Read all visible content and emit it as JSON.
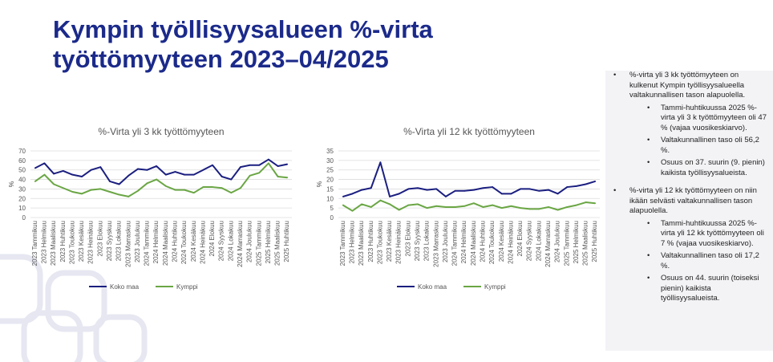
{
  "slide": {
    "title": "Kympin työllisyysalueen %-virta työttömyyteen 2023–04/2025"
  },
  "colors": {
    "title": "#1b2a8a",
    "koko_maa": "#1b1f80",
    "kymppi": "#6aa644",
    "grid": "#dcdcdc",
    "panel": "#f3f3f6"
  },
  "chart_data": [
    {
      "type": "line",
      "title": "%-Virta yli 3 kk työttömyyteen",
      "ylabel": "%",
      "ylim": [
        0,
        70
      ],
      "yticks": [
        0,
        10,
        20,
        30,
        40,
        50,
        60,
        70
      ],
      "grid": true,
      "legend": "bottom",
      "categories": [
        "2023 Tammikuu",
        "2023 Helmikuu",
        "2023 Maaliskuu",
        "2023 Huhtikuu",
        "2023 Toukokuu",
        "2023 Kesäkuu",
        "2023 Heinäkuu",
        "2023 Elokuu",
        "2023 Syyskuu",
        "2023 Lokakuu",
        "2023 Marraskuu",
        "2023 Joulukuu",
        "2024 Tammikuu",
        "2024 Helmikuu",
        "2024 Maaliskuu",
        "2024 Huhtikuu",
        "2024 Toukokuu",
        "2024 Kesäkuu",
        "2024 Heinäkuu",
        "2024 Elokuu",
        "2024 Syyskuu",
        "2024 Lokakuu",
        "2024 Marraskuu",
        "2024 Joulukuu",
        "2025 Tammikuu",
        "2025 Helmikuu",
        "2025 Maaliskuu",
        "2025 Huhtikuu"
      ],
      "series": [
        {
          "name": "Koko maa",
          "color": "#1b1f80",
          "values": [
            52,
            57,
            46,
            49,
            45,
            43,
            50,
            53,
            38,
            35,
            44,
            51,
            50,
            54,
            45,
            48,
            45,
            45,
            50,
            55,
            43,
            40,
            53,
            55,
            55,
            61,
            54,
            56
          ]
        },
        {
          "name": "Kymppi",
          "color": "#6aa644",
          "values": [
            38,
            45,
            35,
            31,
            27,
            25,
            29,
            30,
            27,
            24,
            22,
            28,
            36,
            40,
            33,
            29,
            29,
            26,
            32,
            32,
            31,
            26,
            31,
            44,
            47,
            57,
            43,
            42
          ]
        }
      ]
    },
    {
      "type": "line",
      "title": "%-Virta yli 12 kk työttömyyteen",
      "ylabel": "%",
      "ylim": [
        0,
        35
      ],
      "yticks": [
        0,
        5,
        10,
        15,
        20,
        25,
        30,
        35
      ],
      "grid": true,
      "legend": "bottom",
      "categories": [
        "2023 Tammikuu",
        "2023 Helmikuu",
        "2023 Maaliskuu",
        "2023 Huhtikuu",
        "2023 Toukokuu",
        "2023 Kesäkuu",
        "2023 Heinäkuu",
        "2023 Elokuu",
        "2023 Syyskuu",
        "2023 Lokakuu",
        "2023 Marraskuu",
        "2023 Joulukuu",
        "2024 Tammikuu",
        "2024 Helmikuu",
        "2024 Maaliskuu",
        "2024 Huhtikuu",
        "2024 Toukokuu",
        "2024 Kesäkuu",
        "2024 Heinäkuu",
        "2024 Elokuu",
        "2024 Syyskuu",
        "2024 Lokakuu",
        "2024 Marraskuu",
        "2024 Joulukuu",
        "2025 Tammikuu",
        "2025 Helmikuu",
        "2025 Maaliskuu",
        "2025 Huhtikuu"
      ],
      "series": [
        {
          "name": "Koko maa",
          "color": "#1b1f80",
          "values": [
            11,
            12.5,
            14.5,
            15.5,
            29,
            11,
            12.5,
            15,
            15.5,
            14.5,
            15,
            11,
            14,
            14,
            14.5,
            15.5,
            16,
            12.5,
            12.5,
            15,
            15,
            14,
            14.5,
            12.5,
            16,
            16.5,
            17.5,
            19
          ]
        },
        {
          "name": "Kymppi",
          "color": "#6aa644",
          "values": [
            6.5,
            3.5,
            7,
            5.5,
            9,
            7,
            4,
            6.5,
            7,
            5,
            6,
            5.5,
            5.5,
            6,
            7.5,
            5.5,
            6.5,
            5,
            6,
            5,
            4.5,
            4.5,
            5.5,
            4,
            5.5,
            6.5,
            8,
            7.5
          ]
        }
      ]
    }
  ],
  "sidebar": {
    "b1": "%-virta yli 3 kk työttömyyteen on kulkenut Kympin työllisyysalueella valtakunnallisen tason alapuolella.",
    "b1_subs": [
      "Tammi-huhtikuussa 2025 %-virta yli 3 k työttömyyteen oli 47 % (vajaa vuosikeskiarvo).",
      "Valtakunnallinen taso oli 56,2 %.",
      "Osuus on 37. suurin (9. pienin) kaikista työllisyysalueista."
    ],
    "b2": "%-virta yli 12 kk työttömyyteen on niin ikään selvästi valtakunnallisen tason alapuolella.",
    "b2_subs": [
      "Tammi-huhtikuussa 2025 %-virta yli 12 kk työttömyyteen oli 7 % (vajaa vuosikeskiarvo).",
      "Valtakunnallinen taso oli 17,2 %.",
      "Osuus on 44. suurin (toiseksi pienin) kaikista työllisyysalueista."
    ]
  }
}
